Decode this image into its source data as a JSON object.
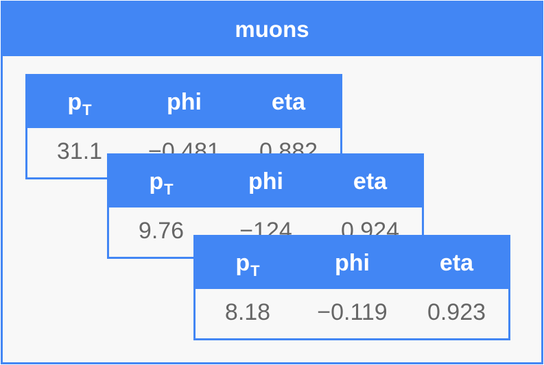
{
  "outer": {
    "title": "muons"
  },
  "columns": {
    "pt_main": "p",
    "pt_sub": "T",
    "phi": "phi",
    "eta": "eta"
  },
  "records": [
    {
      "pt": "31.1",
      "phi": "−0.481",
      "eta": "0.882"
    },
    {
      "pt": "9.76",
      "phi": "−124",
      "eta": "0.924"
    },
    {
      "pt": "8.18",
      "phi": "−0.119",
      "eta": "0.923"
    }
  ],
  "colors": {
    "accent": "#4286f4",
    "background": "#f8f8f8",
    "value_text": "#666666"
  }
}
